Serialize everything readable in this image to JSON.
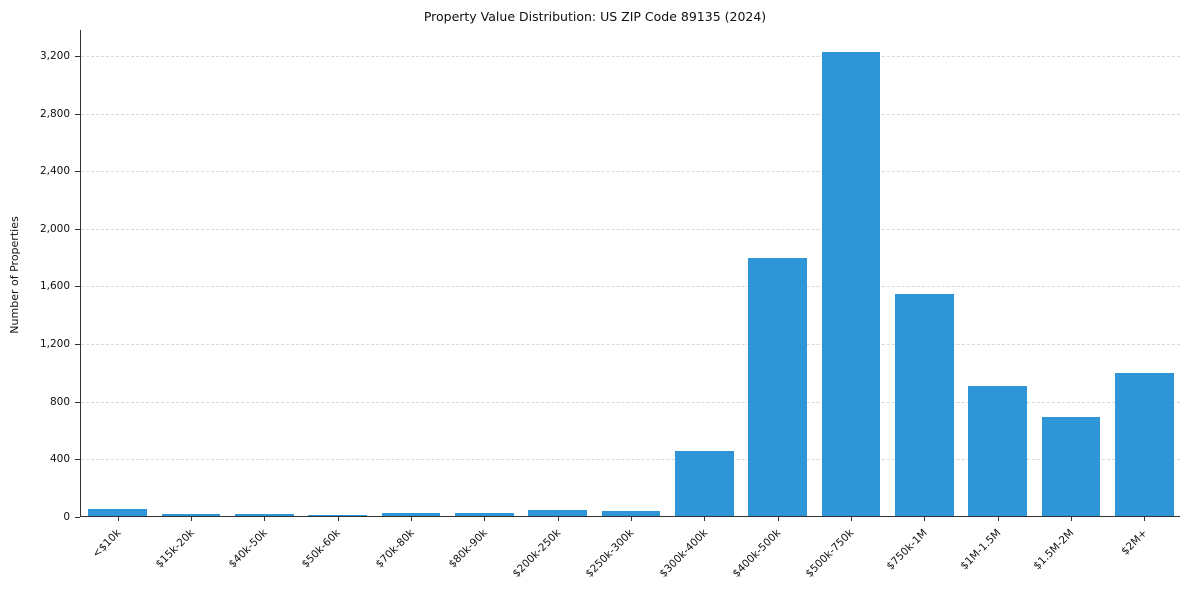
{
  "figure": {
    "title": "Property Value Distribution: US ZIP Code 89135 (2024)",
    "ylabel": "Number of Properties"
  },
  "chart_data": {
    "type": "bar",
    "title": "Property Value Distribution: US ZIP Code 89135 (2024)",
    "xlabel": "",
    "ylabel": "Number of Properties",
    "categories": [
      "<$10k",
      "$15k-20k",
      "$40k-50k",
      "$50k-60k",
      "$70k-80k",
      "$80k-90k",
      "$200k-250k",
      "$250k-300k",
      "$300k-400k",
      "$400k-500k",
      "$500k-750k",
      "$750k-1M",
      "$1M-1.5M",
      "$1.5M-2M",
      "$2M+"
    ],
    "values": [
      50,
      15,
      15,
      8,
      22,
      20,
      42,
      35,
      450,
      1790,
      3220,
      1540,
      900,
      690,
      990
    ],
    "ylim": [
      0,
      3380
    ],
    "yticks": [
      0,
      400,
      800,
      1200,
      1600,
      2000,
      2400,
      2800,
      3200
    ],
    "bar_color": "#2e96d6",
    "bar_width_fraction": 0.8,
    "grid": "horizontal-dashed",
    "legend": "none"
  }
}
